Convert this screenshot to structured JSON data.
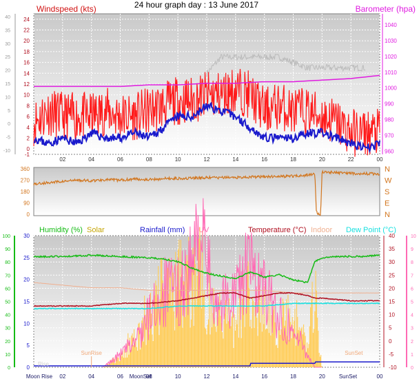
{
  "title": "24 hour graph day : 13 June 2017",
  "chart_data": [
    {
      "type": "line",
      "panel": "wind-pressure",
      "x_ticks": [
        "02",
        "04",
        "06",
        "08",
        "10",
        "12",
        "14",
        "16",
        "18",
        "20",
        "22",
        "00"
      ],
      "left_axis": {
        "label": "Windspeed (kts)",
        "ticks": [
          -1,
          0,
          2,
          4,
          6,
          8,
          10,
          12,
          14,
          16,
          18,
          20,
          22,
          24
        ],
        "ylim": [
          -1,
          25
        ]
      },
      "left_outer_axis": {
        "ticks": [
          -10,
          -5,
          0,
          5,
          10,
          15,
          20,
          25,
          30,
          35,
          40
        ]
      },
      "right_axis": {
        "label": "Barometer (hpa)",
        "ticks": [
          960,
          970,
          980,
          990,
          1000,
          1010,
          1020,
          1030,
          1040
        ],
        "ylim": [
          958,
          1047
        ]
      },
      "grid": true,
      "colors": {
        "gust": "#ff1a1a",
        "average": "#1a1acc",
        "barometer": "#e01be0",
        "gray": "#bbbbbb"
      },
      "series": [
        {
          "name": "",
          "color": "gust",
          "x": [
            0,
            1,
            2,
            3,
            4,
            5,
            6,
            7,
            8,
            9,
            10,
            11,
            12,
            13,
            14,
            15,
            16,
            17,
            18,
            19,
            20,
            21,
            22,
            23,
            24
          ],
          "values": [
            5,
            7,
            6,
            6,
            6,
            7,
            6,
            6,
            7,
            8,
            9,
            9,
            10,
            10,
            11,
            10,
            7,
            8,
            7,
            7,
            6,
            5,
            3,
            3,
            3
          ]
        },
        {
          "name": "",
          "color": "average",
          "x": [
            0,
            1,
            2,
            3,
            4,
            5,
            6,
            7,
            8,
            9,
            10,
            11,
            12,
            13,
            14,
            15,
            16,
            17,
            18,
            19,
            20,
            21,
            22,
            23,
            24
          ],
          "values": [
            2,
            1,
            2,
            1,
            3,
            2,
            2,
            3,
            2,
            4,
            6,
            6,
            8,
            7,
            6,
            4,
            2,
            2,
            2,
            3,
            3,
            2,
            1,
            0,
            1
          ]
        },
        {
          "name": "",
          "color": "gray",
          "x": [
            12,
            13,
            14,
            15,
            16,
            17,
            18,
            19,
            20,
            21,
            22,
            23
          ],
          "values": [
            14,
            17,
            17,
            17,
            17,
            17,
            16,
            15,
            15,
            15,
            15,
            15
          ]
        },
        {
          "name": "",
          "color": "barometer",
          "x": [
            0,
            2,
            4,
            6,
            8,
            10,
            12,
            14,
            16,
            18,
            20,
            22,
            24
          ],
          "values": [
            1001,
            1001,
            1001,
            1001,
            1002,
            1002,
            1003,
            1003,
            1004,
            1004,
            1005,
            1006,
            1008
          ]
        }
      ]
    },
    {
      "type": "line",
      "panel": "wind-direction",
      "left_axis": {
        "ticks": [
          0,
          90,
          180,
          270,
          360
        ]
      },
      "right_axis": {
        "ticks": [
          "N",
          "W",
          "S",
          "E",
          "N"
        ]
      },
      "colors": {
        "direction": "#d2751d"
      },
      "series": [
        {
          "name": "",
          "color": "direction",
          "x": [
            0,
            1,
            2,
            3,
            4,
            5,
            6,
            7,
            8,
            9,
            10,
            11,
            12,
            13,
            14,
            15,
            16,
            17,
            18,
            19,
            19.5,
            19.6,
            19.7,
            19.8,
            19.9,
            20,
            21,
            22,
            23,
            24
          ],
          "values": [
            240,
            250,
            260,
            270,
            265,
            275,
            270,
            280,
            275,
            282,
            285,
            285,
            290,
            290,
            292,
            295,
            298,
            300,
            303,
            310,
            320,
            30,
            0,
            5,
            0,
            335,
            330,
            325,
            322,
            320
          ]
        }
      ]
    },
    {
      "type": "line",
      "panel": "temperature-humidity",
      "legend": [
        {
          "name": "Humidity (%)",
          "color": "#15bb15"
        },
        {
          "name": "Solar",
          "color": "#c4a400"
        },
        {
          "name": "Rainfall (mm)",
          "color": "#1a1acc"
        },
        {
          "name": "UV",
          "color": "#ff69b4"
        },
        {
          "name": "Temperature (°C)",
          "color": "#b01020"
        },
        {
          "name": "Indoor",
          "color": "#f0b090"
        },
        {
          "name": "Dew Point (°C)",
          "color": "#18e0e0"
        }
      ],
      "x_ticks": [
        "Moon Rise",
        "02",
        "04",
        "06",
        "MoonSet",
        "08",
        "10",
        "12",
        "14",
        "16",
        "18",
        "20",
        "SunSet",
        "00"
      ],
      "far_left_axis": {
        "ticks": [
          0,
          10,
          20,
          30,
          40,
          50,
          60,
          70,
          80,
          90,
          100
        ]
      },
      "left_axis": {
        "ticks": [
          0,
          5,
          10,
          15,
          20,
          25,
          30
        ]
      },
      "right_axis": {
        "ticks": [
          -10,
          -5,
          0,
          5,
          10,
          15,
          20,
          25,
          30,
          35,
          40
        ]
      },
      "far_right_axis": {
        "ticks": [
          0,
          1,
          2,
          3,
          4,
          5,
          6,
          7,
          8,
          9,
          10
        ]
      },
      "annotations": [
        "SunRise",
        "SunSet",
        "Rise"
      ],
      "series": [
        {
          "name": "Humidity (%)",
          "x": [
            0,
            2,
            4,
            6,
            8,
            9,
            10,
            11,
            12,
            13,
            14,
            15,
            16,
            17,
            18,
            19,
            19.5,
            20,
            21,
            22,
            23,
            24
          ],
          "values": [
            84,
            84,
            85,
            84,
            83,
            82,
            80,
            75,
            71,
            69,
            67,
            72,
            68,
            70,
            66,
            64,
            80,
            83,
            84,
            84,
            84,
            85
          ]
        },
        {
          "name": "Temperature (°C)",
          "x": [
            0,
            2,
            4,
            6,
            8,
            10,
            12,
            13,
            14,
            15,
            16,
            17,
            18,
            19,
            19.5,
            20,
            22,
            24
          ],
          "values": [
            13,
            13,
            13,
            14,
            14,
            15,
            17,
            18,
            18,
            16,
            17,
            18,
            18,
            17,
            16,
            16,
            15,
            15
          ]
        },
        {
          "name": "Indoor",
          "x": [
            0,
            2,
            4,
            6,
            8,
            10,
            12,
            14,
            16,
            18,
            20,
            22,
            24
          ],
          "values": [
            22,
            21,
            20,
            20,
            19,
            19,
            19,
            19,
            19,
            18,
            18,
            18,
            18
          ]
        },
        {
          "name": "Dew Point (°C)",
          "x": [
            0,
            2,
            4,
            6,
            8,
            10,
            12,
            14,
            16,
            18,
            20,
            22,
            24
          ],
          "values": [
            12,
            12,
            12,
            12,
            12,
            13,
            13,
            13,
            13,
            14,
            14,
            14,
            14
          ]
        },
        {
          "name": "Rainfall (mm)",
          "x": [
            0,
            15,
            15.05,
            19.5,
            19.55,
            24
          ],
          "values": [
            0,
            0,
            0.2,
            0.2,
            0.3,
            0.3
          ]
        },
        {
          "name": "Solar",
          "x": [
            0,
            4.8,
            6,
            7,
            8,
            9,
            10,
            11,
            11.5,
            12,
            12.5,
            13,
            14,
            15,
            16,
            17,
            18,
            19,
            19.5,
            20,
            24
          ],
          "values": [
            0,
            0,
            1,
            3,
            5,
            7,
            8,
            8,
            11,
            7,
            5,
            5,
            4,
            7,
            5,
            4,
            5,
            2,
            7,
            0,
            0
          ]
        },
        {
          "name": "UV",
          "x": [
            0,
            4.8,
            6,
            7,
            8,
            9,
            10,
            11,
            11.5,
            12,
            12.5,
            13,
            14,
            15,
            16,
            17,
            18,
            19,
            19.5,
            20,
            24
          ],
          "values": [
            0,
            0,
            1,
            2,
            4,
            6,
            6,
            8,
            11,
            8,
            6,
            5,
            6,
            8,
            6,
            4,
            3,
            1,
            0,
            0,
            0
          ]
        }
      ]
    }
  ]
}
